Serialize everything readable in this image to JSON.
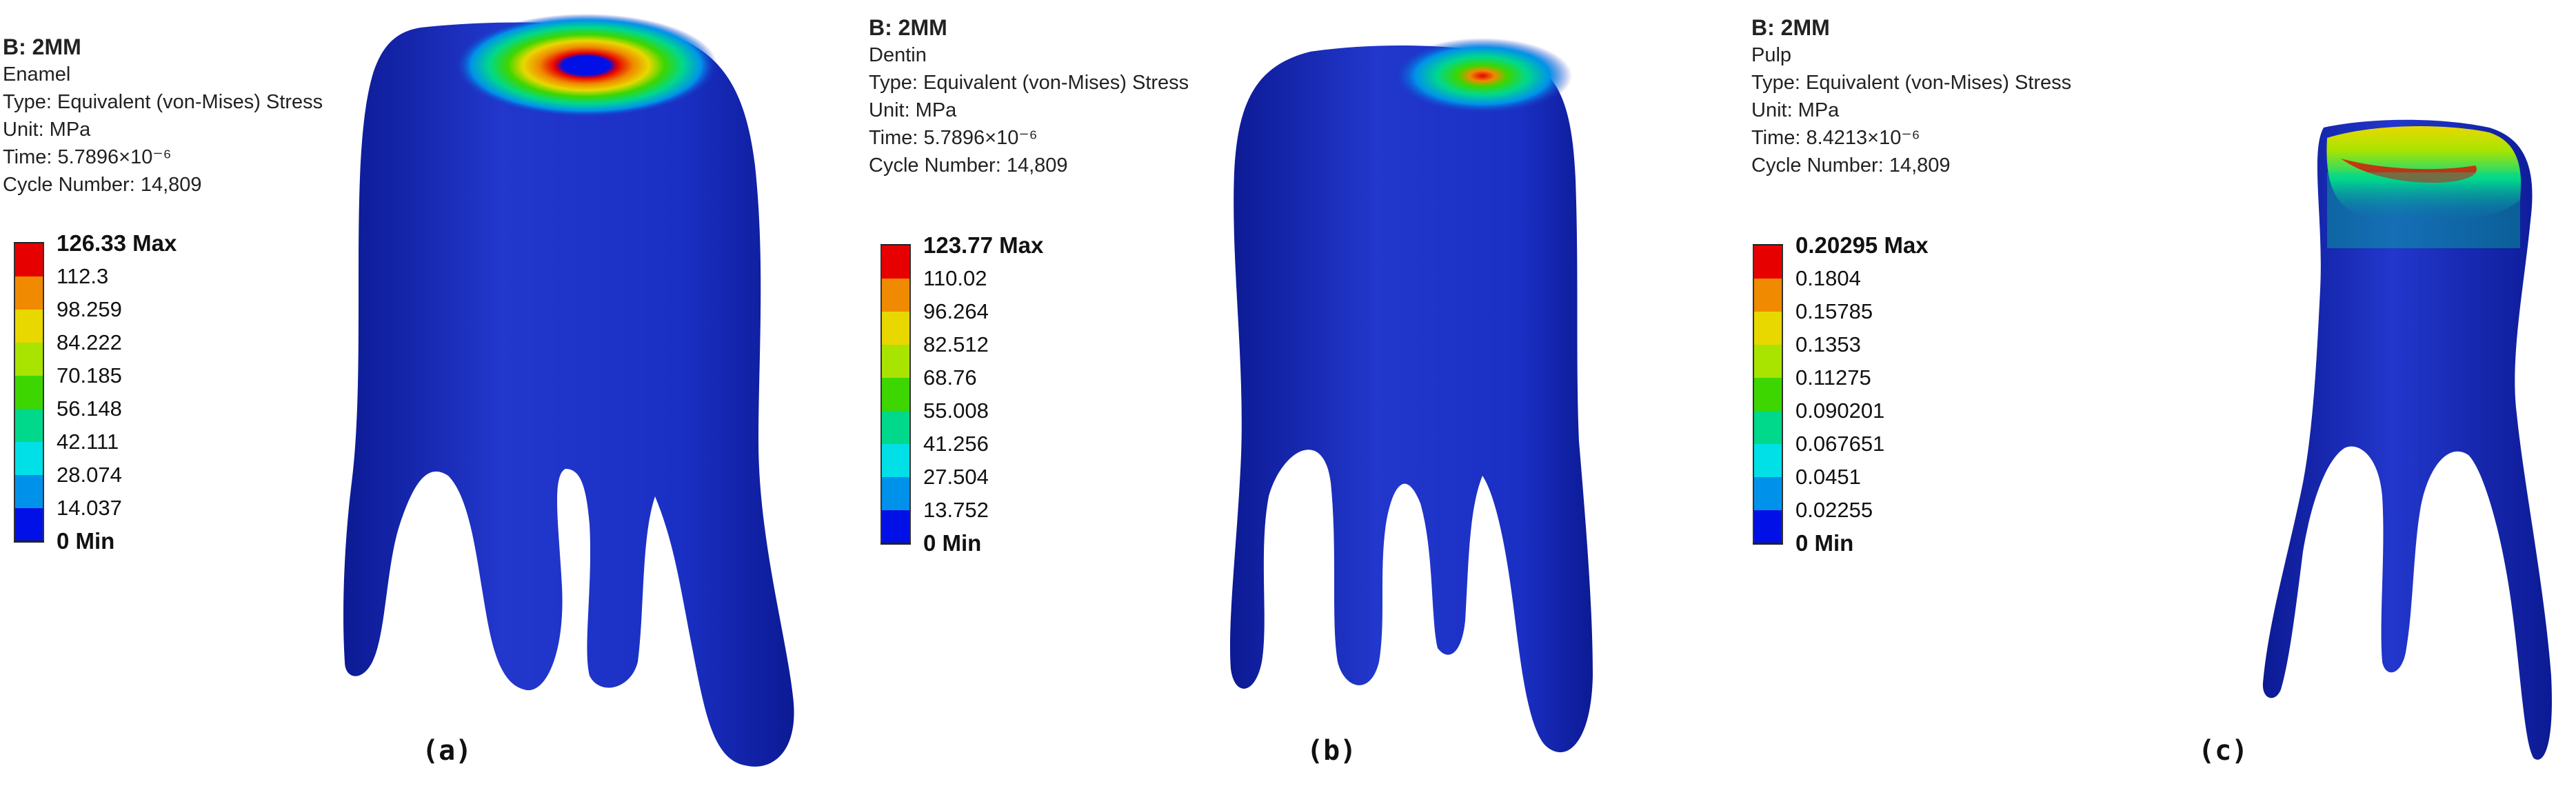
{
  "panels": [
    {
      "id": "a",
      "title": "B: 2MM",
      "material": "Enamel",
      "type_line": "Type: Equivalent (von-Mises) Stress",
      "unit_line": "Unit: MPa",
      "time_line": "Time: 5.7896×10⁻⁶",
      "cycle_line": "Cycle Number: 14,809",
      "legend": [
        "126.33 Max",
        "112.3",
        "98.259",
        "84.222",
        "70.185",
        "56.148",
        "42.111",
        "28.074",
        "14.037",
        "0 Min"
      ],
      "caption": "(a)"
    },
    {
      "id": "b",
      "title": "B: 2MM",
      "material": "Dentin",
      "type_line": "Type: Equivalent (von-Mises) Stress",
      "unit_line": "Unit: MPa",
      "time_line": "Time: 5.7896×10⁻⁶",
      "cycle_line": "Cycle Number: 14,809",
      "legend": [
        "123.77 Max",
        "110.02",
        "96.264",
        "82.512",
        "68.76",
        "55.008",
        "41.256",
        "27.504",
        "13.752",
        "0 Min"
      ],
      "caption": "(b)"
    },
    {
      "id": "c",
      "title": "B: 2MM",
      "material": "Pulp",
      "type_line": "Type: Equivalent (von-Mises) Stress",
      "unit_line": "Unit: MPa",
      "time_line": "Time: 8.4213×10⁻⁶",
      "cycle_line": "Cycle Number: 14,809",
      "legend": [
        "0.20295 Max",
        "0.1804",
        "0.15785",
        "0.1353",
        "0.11275",
        "0.090201",
        "0.067651",
        "0.0451",
        "0.02255",
        "0 Min"
      ],
      "caption": "(c)"
    }
  ],
  "colors": {
    "scale": [
      "#e60000",
      "#f08a00",
      "#e8d800",
      "#a8e400",
      "#3dd600",
      "#00d88c",
      "#00e0e6",
      "#0092ea",
      "#0010e6"
    ],
    "tooth_base": "#1a2fc4",
    "tooth_dark": "#0c1a94"
  }
}
